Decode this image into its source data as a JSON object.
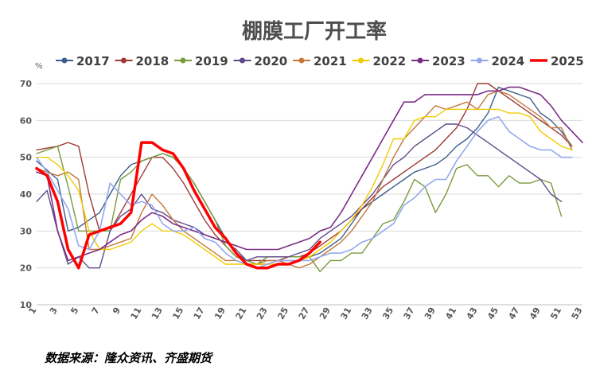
{
  "source": "数据来源：隆众资讯、齐盛期货",
  "chart_data": {
    "type": "line",
    "title": "棚膜工厂开工率",
    "ylabel": "%",
    "xlabel": "",
    "ylim": [
      10,
      70
    ],
    "yticks": [
      10,
      20,
      30,
      40,
      50,
      60,
      70
    ],
    "xticks": [
      1,
      3,
      5,
      7,
      9,
      11,
      13,
      15,
      17,
      19,
      21,
      23,
      25,
      27,
      29,
      31,
      33,
      35,
      37,
      39,
      41,
      43,
      45,
      47,
      49,
      51,
      53
    ],
    "xlim": [
      1,
      53
    ],
    "grid": "horizontal",
    "legend": "top",
    "series": [
      {
        "name": "2017",
        "color": "#3A5F8A",
        "width": 1.4,
        "x": [
          1,
          3,
          4,
          5,
          6,
          7,
          8,
          9,
          10,
          11,
          12,
          13,
          14,
          15,
          16,
          17,
          18,
          19,
          20,
          21,
          22,
          23,
          24,
          25,
          26,
          27,
          28,
          29,
          30,
          31,
          32,
          33,
          34,
          35,
          36,
          37,
          38,
          39,
          40,
          41,
          42,
          43,
          44,
          45,
          46,
          47,
          48,
          49,
          50,
          51,
          52
        ],
        "values": [
          49,
          44,
          30,
          31,
          33,
          35,
          40,
          45,
          48,
          49,
          50,
          51,
          50,
          47,
          43,
          38,
          33,
          28,
          24,
          22,
          21,
          21,
          22,
          22,
          22,
          23,
          24,
          26,
          28,
          32,
          36,
          38,
          40,
          42,
          44,
          46,
          47,
          48,
          50,
          53,
          55,
          58,
          62,
          69,
          68,
          67,
          66,
          62,
          60,
          57,
          53
        ]
      },
      {
        "name": "2018",
        "color": "#9E3A35",
        "width": 1.4,
        "x": [
          1,
          3,
          4,
          5,
          6,
          7,
          8,
          9,
          10,
          11,
          12,
          13,
          14,
          15,
          16,
          17,
          18,
          19,
          20,
          21,
          22,
          23,
          24,
          25,
          26,
          27,
          28,
          29,
          30,
          31,
          32,
          33,
          34,
          35,
          36,
          37,
          38,
          39,
          40,
          41,
          42,
          43,
          44,
          45,
          46,
          47,
          48,
          49,
          50,
          51,
          52
        ],
        "values": [
          52,
          53,
          54,
          53,
          40,
          30,
          30,
          35,
          40,
          45,
          50,
          50,
          47,
          43,
          38,
          33,
          29,
          26,
          23,
          22,
          22,
          22,
          22,
          23,
          23,
          24,
          26,
          28,
          30,
          33,
          36,
          39,
          42,
          44,
          46,
          48,
          50,
          52,
          55,
          58,
          63,
          70,
          70,
          68,
          66,
          64,
          62,
          60,
          58,
          56,
          53
        ]
      },
      {
        "name": "2019",
        "color": "#7A9A3B",
        "width": 1.4,
        "x": [
          1,
          3,
          4,
          5,
          6,
          7,
          8,
          9,
          10,
          11,
          12,
          13,
          14,
          15,
          16,
          17,
          18,
          19,
          20,
          21,
          22,
          23,
          24,
          25,
          26,
          27,
          28,
          29,
          30,
          31,
          32,
          33,
          34,
          35,
          36,
          37,
          38,
          39,
          40,
          41,
          42,
          43,
          44,
          45,
          46,
          47,
          48,
          49,
          50,
          51
        ],
        "values": [
          51,
          53,
          42,
          30,
          30,
          30,
          30,
          44,
          46,
          49,
          50,
          51,
          50,
          47,
          43,
          38,
          33,
          26,
          23,
          22,
          21,
          23,
          23,
          23,
          23,
          23,
          19,
          22,
          22,
          24,
          24,
          28,
          32,
          33,
          38,
          44,
          42,
          35,
          40,
          47,
          48,
          45,
          45,
          42,
          45,
          43,
          43,
          44,
          43,
          34
        ]
      },
      {
        "name": "2020",
        "color": "#5E4A8B",
        "width": 1.4,
        "x": [
          1,
          2,
          3,
          4,
          5,
          6,
          7,
          8,
          9,
          10,
          11,
          12,
          13,
          14,
          15,
          16,
          17,
          18,
          19,
          20,
          21,
          22,
          23,
          24,
          25,
          26,
          27,
          28,
          29,
          30,
          31,
          32,
          33,
          34,
          35,
          36,
          37,
          38,
          39,
          40,
          41,
          42,
          43,
          44,
          45,
          46,
          47,
          48,
          49,
          50,
          51
        ],
        "values": [
          38,
          41,
          30,
          21,
          23,
          20,
          20,
          30,
          34,
          36,
          40,
          36,
          35,
          33,
          32,
          31,
          29,
          28,
          27,
          25,
          22,
          23,
          23,
          23,
          23,
          24,
          25,
          28,
          30,
          32,
          34,
          37,
          40,
          44,
          48,
          50,
          53,
          55,
          57,
          59,
          59,
          58,
          56,
          54,
          52,
          50,
          48,
          46,
          44,
          40,
          38
        ]
      },
      {
        "name": "2021",
        "color": "#C2773C",
        "width": 1.4,
        "x": [
          1,
          2,
          3,
          4,
          5,
          6,
          7,
          8,
          9,
          10,
          11,
          12,
          13,
          14,
          15,
          16,
          17,
          18,
          19,
          20,
          21,
          22,
          23,
          24,
          25,
          26,
          27,
          28,
          29,
          30,
          31,
          32,
          33,
          34,
          35,
          36,
          37,
          38,
          39,
          40,
          41,
          42,
          43,
          44,
          45,
          46,
          47,
          48,
          49,
          50,
          51,
          52
        ],
        "values": [
          47,
          46,
          45,
          46,
          44,
          25,
          25,
          26,
          27,
          28,
          35,
          40,
          37,
          33,
          30,
          28,
          26,
          24,
          22,
          22,
          21,
          21,
          22,
          22,
          21,
          20,
          21,
          23,
          25,
          27,
          30,
          34,
          38,
          44,
          50,
          55,
          58,
          61,
          64,
          63,
          64,
          65,
          63,
          67,
          68,
          67,
          65,
          63,
          61,
          58,
          58,
          52
        ]
      },
      {
        "name": "2022",
        "color": "#F2CC00",
        "width": 1.4,
        "x": [
          1,
          2,
          3,
          4,
          5,
          6,
          7,
          8,
          9,
          10,
          11,
          12,
          13,
          14,
          15,
          16,
          17,
          18,
          19,
          20,
          21,
          22,
          23,
          24,
          25,
          26,
          27,
          28,
          29,
          30,
          31,
          32,
          33,
          34,
          35,
          36,
          37,
          38,
          39,
          40,
          41,
          42,
          43,
          44,
          45,
          46,
          47,
          48,
          49,
          50,
          51,
          52
        ],
        "values": [
          50,
          50,
          48,
          45,
          41,
          30,
          25,
          25,
          26,
          27,
          30,
          32,
          30,
          30,
          29,
          27,
          25,
          23,
          21,
          21,
          21,
          21,
          21,
          21,
          21,
          22,
          23,
          25,
          27,
          30,
          33,
          37,
          42,
          48,
          55,
          55,
          60,
          61,
          61,
          63,
          63,
          63,
          63,
          63,
          63,
          62,
          62,
          61,
          57,
          55,
          53,
          52
        ]
      },
      {
        "name": "2023",
        "color": "#7B2D86",
        "width": 1.6,
        "x": [
          1,
          2,
          3,
          4,
          5,
          6,
          7,
          8,
          9,
          10,
          11,
          12,
          13,
          14,
          15,
          16,
          17,
          18,
          19,
          20,
          21,
          22,
          23,
          24,
          25,
          26,
          27,
          28,
          29,
          30,
          31,
          32,
          33,
          34,
          35,
          36,
          37,
          38,
          39,
          40,
          41,
          42,
          43,
          44,
          45,
          46,
          47,
          48,
          49,
          50,
          51,
          52,
          53
        ],
        "values": [
          46,
          45,
          30,
          22,
          23,
          24,
          25,
          27,
          29,
          30,
          33,
          35,
          34,
          32,
          31,
          30,
          29,
          28,
          27,
          26,
          25,
          25,
          25,
          25,
          26,
          27,
          28,
          30,
          31,
          35,
          40,
          45,
          50,
          55,
          60,
          65,
          65,
          67,
          67,
          67,
          67,
          67,
          67,
          68,
          68,
          69,
          69,
          68,
          67,
          64,
          60,
          57,
          54
        ]
      },
      {
        "name": "2024",
        "color": "#94A8EE",
        "width": 1.6,
        "x": [
          1,
          2,
          3,
          4,
          5,
          6,
          7,
          8,
          9,
          10,
          11,
          12,
          13,
          14,
          15,
          16,
          17,
          18,
          19,
          20,
          21,
          22,
          23,
          24,
          25,
          26,
          27,
          28,
          29,
          30,
          31,
          32,
          33,
          34,
          35,
          36,
          37,
          38,
          39,
          40,
          41,
          42,
          43,
          44,
          45,
          46,
          47,
          48,
          49,
          50,
          51,
          52
        ],
        "values": [
          50,
          46,
          41,
          36,
          26,
          25,
          30,
          43,
          40,
          37,
          38,
          37,
          32,
          30,
          30,
          31,
          28,
          27,
          24,
          22,
          21,
          20,
          21,
          22,
          22,
          22,
          22,
          23,
          24,
          24,
          25,
          27,
          28,
          30,
          32,
          37,
          39,
          42,
          44,
          44,
          49,
          53,
          57,
          60,
          61,
          57,
          55,
          53,
          52,
          52,
          50,
          50
        ]
      },
      {
        "name": "2025",
        "color": "#FF0000",
        "width": 3.5,
        "x": [
          1,
          2,
          3,
          4,
          5,
          6,
          7,
          8,
          9,
          10,
          11,
          12,
          13,
          14,
          15,
          16,
          17,
          18,
          19,
          20,
          21,
          22,
          23,
          24,
          25,
          26,
          27,
          28
        ],
        "values": [
          47,
          45,
          38,
          25,
          20,
          29,
          30,
          31,
          32,
          35,
          54,
          54,
          52,
          51,
          47,
          41,
          36,
          31,
          28,
          24,
          21,
          20,
          20,
          21,
          21,
          22,
          24,
          27
        ]
      }
    ]
  }
}
